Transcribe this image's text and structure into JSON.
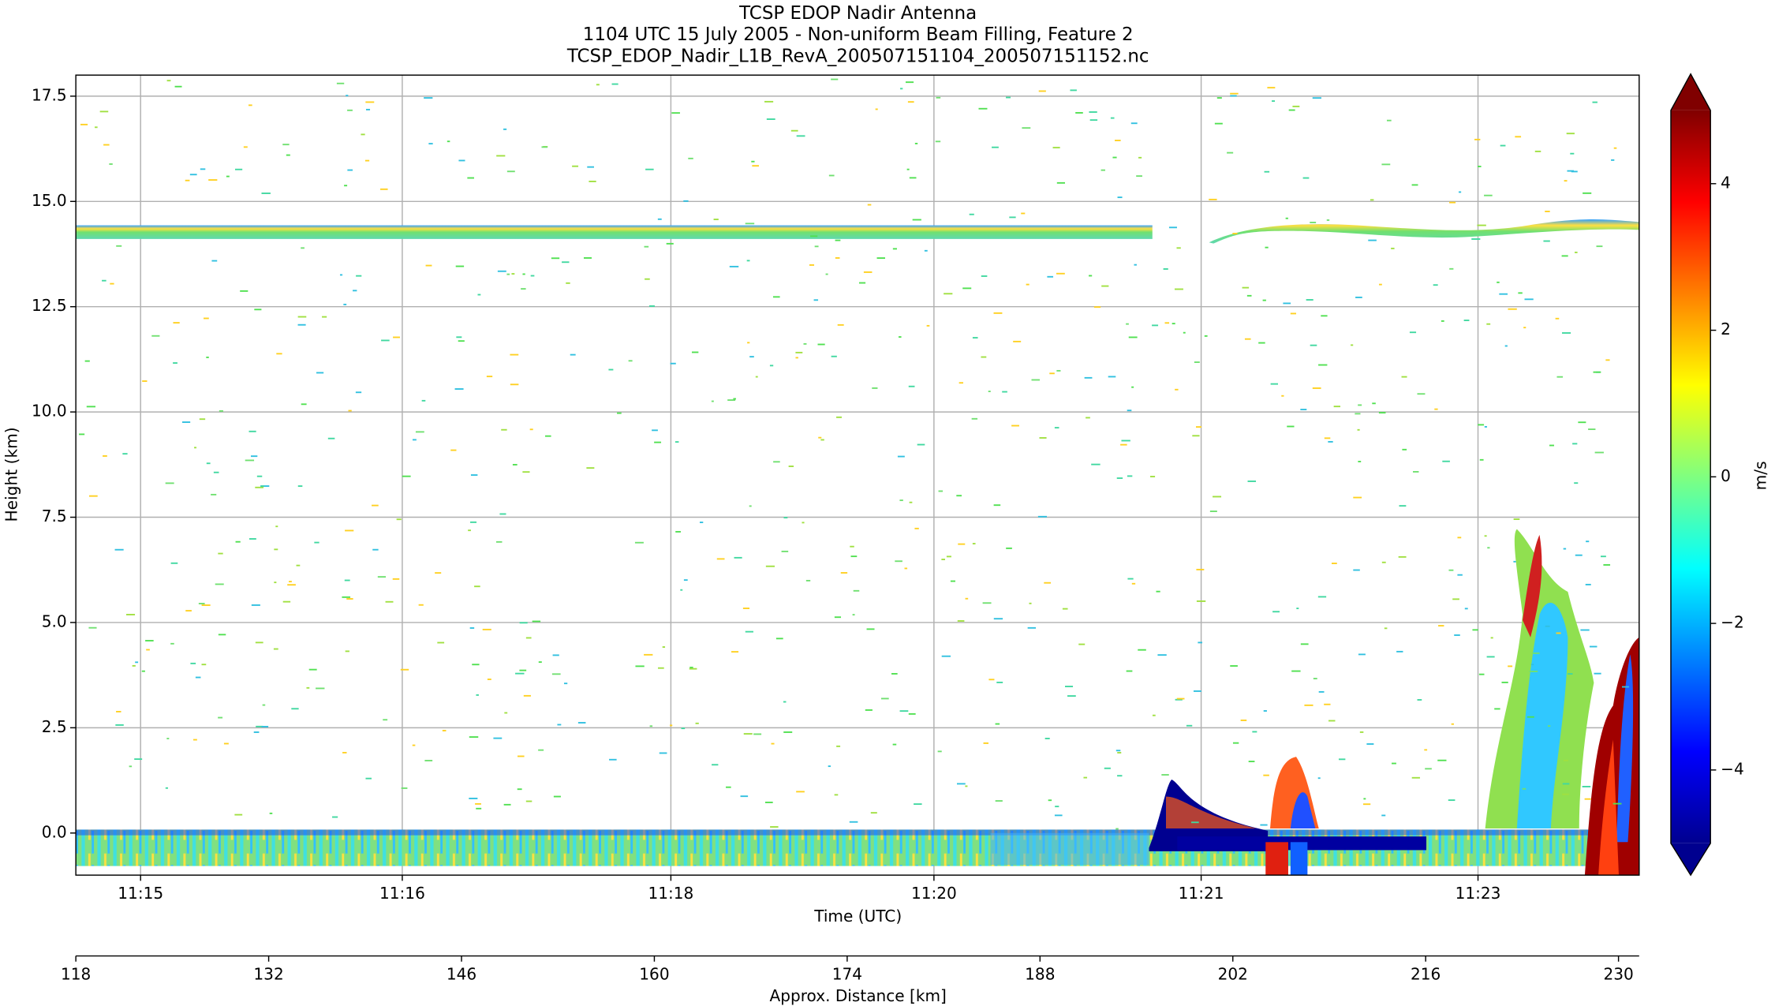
{
  "chart_data": {
    "type": "heatmap",
    "title_lines": [
      "TCSP EDOP Nadir Antenna",
      "1104 UTC 15 July 2005 - Non-uniform Beam Filling, Feature 2",
      "TCSP_EDOP_Nadir_L1B_RevA_200507151104_200507151152.nc"
    ],
    "xlabel": "Time (UTC)",
    "x2label": "Approx. Distance [km]",
    "ylabel": "Height (km)",
    "colorbar_label": "m/s",
    "xlim": [
      118,
      231.5
    ],
    "xticks": [
      118,
      132,
      146,
      160,
      174,
      188,
      202,
      216,
      230
    ],
    "time_ticks": [
      {
        "value": 122.7,
        "label": "11:15"
      },
      {
        "value": 141.7,
        "label": "11:16"
      },
      {
        "value": 161.2,
        "label": "11:18"
      },
      {
        "value": 180.3,
        "label": "11:20"
      },
      {
        "value": 199.7,
        "label": "11:21"
      },
      {
        "value": 219.8,
        "label": "11:23"
      }
    ],
    "ylim": [
      -1,
      18
    ],
    "yticks": [
      {
        "value": 0,
        "label": "0.0"
      },
      2.5,
      {
        "value": 5,
        "label": "5.0"
      },
      7.5,
      {
        "value": 10,
        "label": "10.0"
      },
      12.5,
      {
        "value": 15,
        "label": "15.0"
      },
      17.5
    ],
    "clim": [
      -5,
      5
    ],
    "cticks": [
      {
        "value": -4,
        "label": "−4"
      },
      {
        "value": -2,
        "label": "−2"
      },
      0,
      2,
      4
    ],
    "colormap": "jet",
    "colorbar_extend": "both",
    "grid": true
  }
}
